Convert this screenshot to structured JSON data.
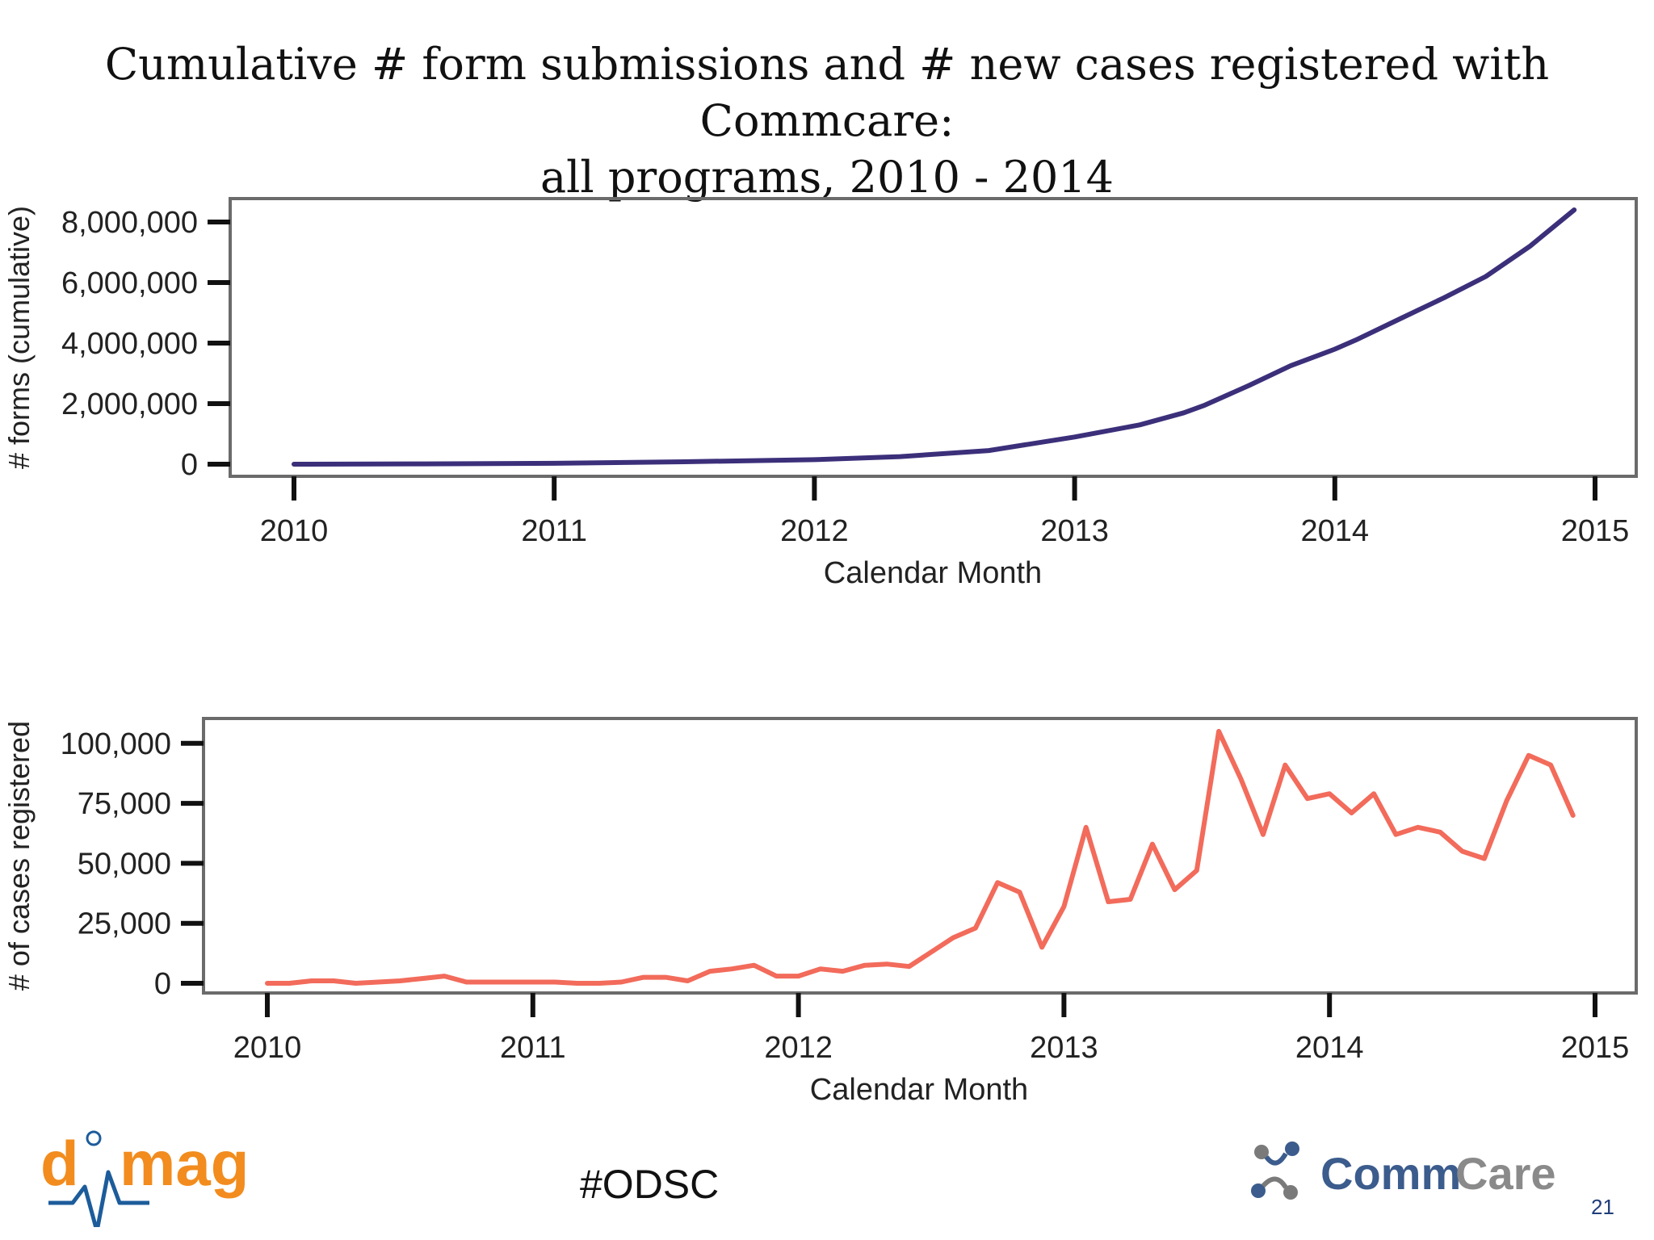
{
  "slide": {
    "title_line1": "Cumulative # form submissions and # new cases registered with Commcare:",
    "title_line2": "all programs, 2010 - 2014",
    "hashtag": "#ODSC",
    "slide_number": "21",
    "logo_left": "dimagi",
    "logo_right": "CommCare"
  },
  "colors": {
    "forms_line": "#3c2f7a",
    "cases_line": "#f26b5b",
    "axis": "#111111",
    "frame": "#6b6b6b",
    "dimagi_orange": "#f28c1e",
    "dimagi_blue": "#1d5c9b",
    "commcare_blue": "#3b5c8c"
  },
  "chart_data": [
    {
      "type": "line",
      "ylabel": "# forms (cumulative)",
      "xlabel": "Calendar Month",
      "xlim": [
        2010,
        2015
      ],
      "ylim": [
        0,
        8400000
      ],
      "xticks": [
        2010,
        2011,
        2012,
        2013,
        2014,
        2015
      ],
      "xtick_labels": [
        "2010",
        "2011",
        "2012",
        "2013",
        "2014",
        "2015"
      ],
      "yticks": [
        0,
        2000000,
        4000000,
        6000000,
        8000000
      ],
      "ytick_labels": [
        "0",
        "2,000,000",
        "4,000,000",
        "6,000,000",
        "8,000,000"
      ],
      "grid": false,
      "series": [
        {
          "x": [
            2010.0,
            2010.5,
            2011.0,
            2011.5,
            2012.0,
            2012.33,
            2012.67,
            2013.0,
            2013.25,
            2013.42,
            2013.5,
            2013.67,
            2013.83,
            2014.0,
            2014.08,
            2014.25,
            2014.42,
            2014.58,
            2014.75,
            2014.92
          ],
          "values": [
            0,
            10000,
            30000,
            80000,
            150000,
            250000,
            450000,
            900000,
            1300000,
            1700000,
            1950000,
            2600000,
            3250000,
            3800000,
            4100000,
            4800000,
            5500000,
            6200000,
            7200000,
            8400000
          ]
        }
      ]
    },
    {
      "type": "line",
      "ylabel": "# of cases registered",
      "xlabel": "Calendar Month",
      "xlim": [
        2010,
        2015
      ],
      "ylim": [
        0,
        107000
      ],
      "xticks": [
        2010,
        2011,
        2012,
        2013,
        2014,
        2015
      ],
      "xtick_labels": [
        "2010",
        "2011",
        "2012",
        "2013",
        "2014",
        "2015"
      ],
      "yticks": [
        0,
        25000,
        50000,
        75000,
        100000
      ],
      "ytick_labels": [
        "0",
        "25,000",
        "50,000",
        "75,000",
        "100,000"
      ],
      "grid": false,
      "series": [
        {
          "x": [
            2010.0,
            2010.083,
            2010.167,
            2010.25,
            2010.333,
            2010.417,
            2010.5,
            2010.583,
            2010.667,
            2010.75,
            2010.833,
            2010.917,
            2011.0,
            2011.083,
            2011.167,
            2011.25,
            2011.333,
            2011.417,
            2011.5,
            2011.583,
            2011.667,
            2011.75,
            2011.833,
            2011.917,
            2012.0,
            2012.083,
            2012.167,
            2012.25,
            2012.333,
            2012.417,
            2012.5,
            2012.583,
            2012.667,
            2012.75,
            2012.833,
            2012.917,
            2013.0,
            2013.083,
            2013.167,
            2013.25,
            2013.333,
            2013.417,
            2013.5,
            2013.583,
            2013.667,
            2013.75,
            2013.833,
            2013.917,
            2014.0,
            2014.083,
            2014.167,
            2014.25,
            2014.333,
            2014.417,
            2014.5,
            2014.583,
            2014.667,
            2014.75,
            2014.833,
            2014.917
          ],
          "values": [
            0,
            0,
            1000,
            1000,
            0,
            500,
            1000,
            2000,
            3000,
            500,
            500,
            500,
            500,
            500,
            0,
            0,
            500,
            2500,
            2500,
            1000,
            5000,
            6000,
            7500,
            3000,
            3000,
            6000,
            5000,
            7500,
            8000,
            7000,
            13000,
            19000,
            23000,
            42000,
            38000,
            15000,
            32000,
            65000,
            34000,
            35000,
            58000,
            39000,
            47000,
            105000,
            85000,
            62000,
            91000,
            77000,
            79000,
            71000,
            79000,
            62000,
            65000,
            63000,
            55000,
            52000,
            76000,
            95000,
            91000,
            70000
          ]
        }
      ]
    }
  ]
}
